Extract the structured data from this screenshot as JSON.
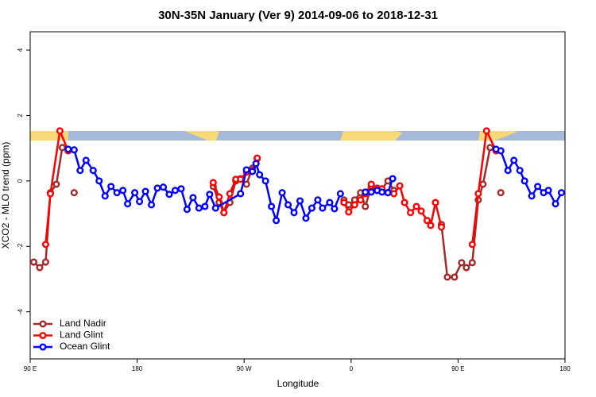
{
  "chart_data": {
    "type": "line",
    "title": "30N-35N January (Ver 9)   2014-09-06 to 2018-12-31",
    "x_label": "Longitude",
    "y_label": "XCO2 - MLO trend (ppm)",
    "xlim": [
      90,
      540
    ],
    "xticks": [
      {
        "value": 90,
        "label": "90 E"
      },
      180,
      {
        "value": 270,
        "label": "90 W"
      },
      {
        "value": 360,
        "label": "0"
      },
      {
        "value": 450,
        "label": "90 E"
      },
      {
        "value": 540,
        "label": "180"
      }
    ],
    "ylim": [
      -5.44,
      4.56
    ],
    "yticks": [
      -4,
      -2,
      0,
      2,
      4
    ],
    "legend": "bottom-left",
    "series": [
      {
        "name": "Land Nadir",
        "color": "#a52a2a",
        "x": [
          93,
          98,
          103,
          107,
          112,
          117,
          122,
          124,
          127,
          240,
          244,
          249,
          253,
          258,
          263,
          267,
          272,
          277,
          281,
          320,
          354,
          358,
          363,
          368,
          372,
          377,
          382,
          386,
          391,
          396,
          420,
          436,
          441,
          447,
          453,
          457,
          462,
          467,
          471,
          477,
          482,
          484,
          486
        ],
        "values": [
          -2.48,
          -2.65,
          -2.48,
          -0.36,
          -0.1,
          1.02,
          0.92,
          null,
          -0.36,
          null,
          -0.17,
          -0.66,
          -0.97,
          -0.66,
          0,
          0.07,
          -0.1,
          0.39,
          0.68,
          null,
          -0.58,
          -0.73,
          -0.58,
          -0.36,
          -0.78,
          -0.17,
          -0.29,
          -0.24,
          0,
          -0.29,
          null,
          -1.33,
          -2.94,
          -2.94,
          -2.5,
          -2.65,
          -2.5,
          -0.58,
          -0.1,
          1.02,
          0.92,
          null,
          -0.36
        ]
      },
      {
        "name": "Land Glint",
        "color": "#ff0000",
        "x": [
          103,
          107,
          115,
          122,
          200,
          244,
          249,
          253,
          258,
          263,
          267,
          272,
          277,
          281,
          320,
          354,
          358,
          363,
          368,
          372,
          377,
          382,
          386,
          391,
          396,
          401,
          405,
          410,
          415,
          419,
          424,
          427,
          431,
          436,
          450,
          462,
          467,
          474,
          482
        ],
        "values": [
          -1.94,
          -0.39,
          1.53,
          0.92,
          null,
          -0.05,
          -0.49,
          -0.97,
          -0.39,
          0.05,
          0.05,
          0.27,
          0.32,
          0.7,
          null,
          -0.66,
          -0.95,
          -0.73,
          -0.58,
          -0.39,
          -0.1,
          -0.22,
          -0.24,
          -0.36,
          -0.39,
          -0.15,
          -0.66,
          -0.97,
          -0.78,
          -0.92,
          -1.21,
          -1.36,
          -0.66,
          -1.41,
          null,
          -1.94,
          -0.39,
          1.53,
          0.92
        ]
      },
      {
        "name": "Ocean Glint",
        "color": "#0000ff",
        "x": [
          122,
          127,
          132,
          137,
          143,
          148,
          153,
          158,
          163,
          168,
          172,
          178,
          182,
          187,
          192,
          197,
          202,
          207,
          212,
          217,
          222,
          227,
          232,
          237,
          241,
          246,
          267,
          272,
          277,
          280,
          283,
          288,
          293,
          297,
          302,
          307,
          312,
          317,
          322,
          327,
          332,
          336,
          342,
          346,
          351,
          360,
          372,
          377,
          382,
          386,
          391,
          395,
          450,
          482,
          486,
          492,
          497,
          502,
          506,
          512,
          517,
          522,
          526,
          532,
          537
        ],
        "values": [
          0.97,
          0.95,
          0.32,
          0.63,
          0.32,
          0,
          -0.46,
          -0.17,
          -0.36,
          -0.29,
          -0.7,
          -0.36,
          -0.63,
          -0.32,
          -0.73,
          -0.22,
          -0.19,
          -0.41,
          -0.29,
          -0.24,
          -0.87,
          -0.51,
          -0.83,
          -0.78,
          -0.41,
          -0.83,
          -0.39,
          0.34,
          0.29,
          0.53,
          0.19,
          0,
          -0.78,
          -1.21,
          -0.36,
          -0.73,
          -0.97,
          -0.61,
          -1.14,
          -0.83,
          -0.58,
          -0.83,
          -0.66,
          -0.85,
          -0.39,
          null,
          -0.34,
          -0.34,
          -0.29,
          -0.34,
          -0.36,
          0.07,
          null,
          0.97,
          0.92,
          0.32,
          0.63,
          0.32,
          0,
          -0.46,
          -0.17,
          -0.36,
          -0.29,
          -0.7,
          -0.36
        ]
      }
    ]
  }
}
